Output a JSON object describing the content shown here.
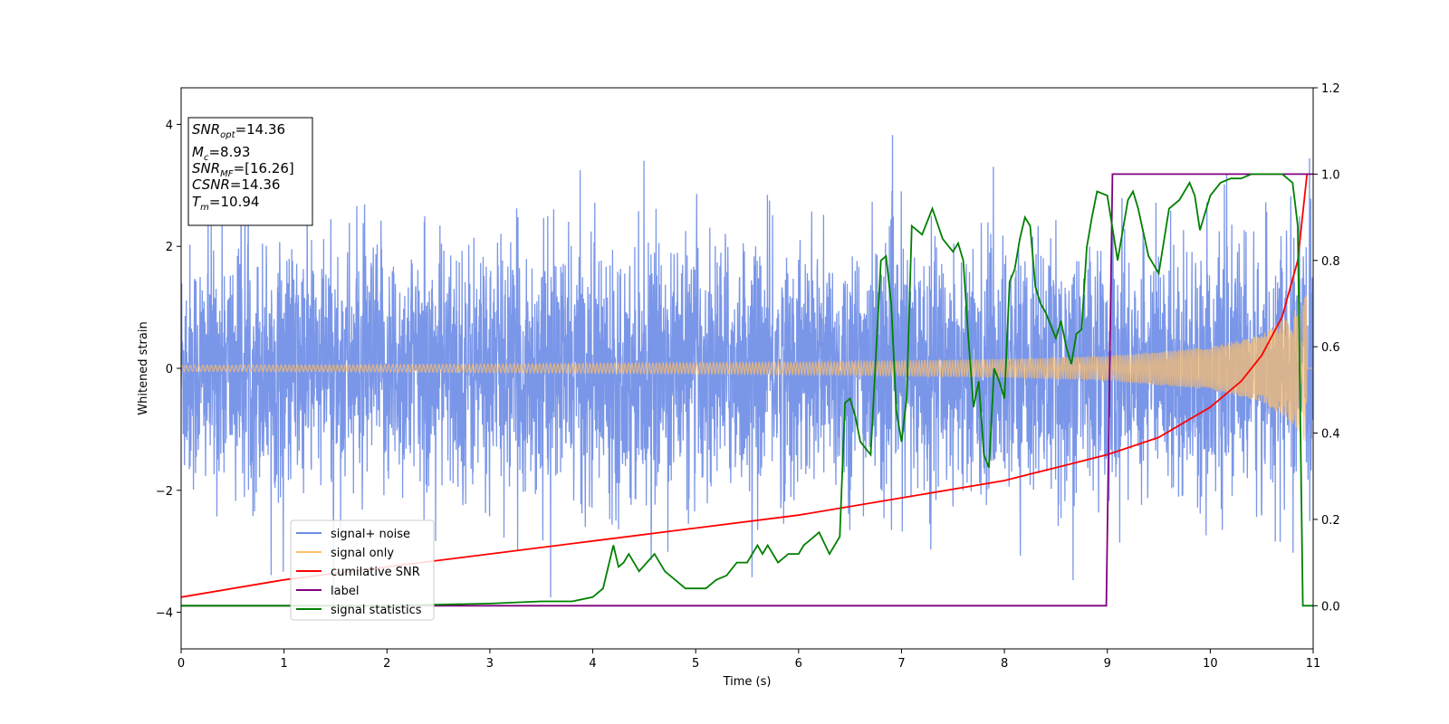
{
  "chart_data": {
    "type": "line",
    "xlabel": "Time (s)",
    "ylabel": "Whitened strain",
    "xlim": [
      0,
      11
    ],
    "ylim": [
      -4.6,
      4.6
    ],
    "y2lim": [
      -0.1,
      1.2
    ],
    "xticks": [
      "0",
      "1",
      "2",
      "3",
      "4",
      "5",
      "6",
      "7",
      "8",
      "9",
      "10",
      "11"
    ],
    "yticks": [
      "−4",
      "−2",
      "0",
      "2",
      "4"
    ],
    "y2ticks": [
      "0.0",
      "0.2",
      "0.4",
      "0.6",
      "0.8",
      "1.0",
      "1.2"
    ],
    "legend": {
      "placement": "lower-left",
      "entries": [
        "signal+ noise",
        "signal only",
        "cumilative SNR",
        "label",
        "signal statistics"
      ]
    },
    "info_box": {
      "lines": [
        {
          "sym": "SNR",
          "sub": "opt",
          "val": "=14.36"
        },
        {
          "sym": "M",
          "sub": "c",
          "val": "=8.93"
        },
        {
          "sym": "SNR",
          "sub": "MF",
          "val": "=[16.26]"
        },
        {
          "sym": "CSNR",
          "sub": "",
          "val": "=14.36"
        },
        {
          "sym": "T",
          "sub": "m",
          "val": "=10.94"
        }
      ]
    },
    "series": [
      {
        "name": "signal+ noise",
        "axis": "left",
        "color": "#6b8be6",
        "description_values": {
          "noise_std": 1.0,
          "sample_rate_display": 400
        }
      },
      {
        "name": "signal only",
        "axis": "left",
        "color": "#ffbf69",
        "envelope": {
          "t": [
            0,
            2,
            4,
            6,
            8,
            9,
            10,
            10.5,
            10.8,
            10.94
          ],
          "amp": [
            0.05,
            0.06,
            0.08,
            0.1,
            0.15,
            0.2,
            0.35,
            0.55,
            0.9,
            1.25
          ]
        }
      },
      {
        "name": "cumilative SNR",
        "axis": "right",
        "color": "#ff0000",
        "x": [
          0,
          1,
          2,
          3,
          4,
          5,
          6,
          7,
          8,
          8.5,
          9,
          9.5,
          10,
          10.3,
          10.5,
          10.7,
          10.85,
          10.94
        ],
        "y": [
          0.02,
          0.06,
          0.09,
          0.12,
          0.15,
          0.18,
          0.21,
          0.25,
          0.29,
          0.32,
          0.35,
          0.39,
          0.46,
          0.52,
          0.58,
          0.67,
          0.8,
          1.0
        ]
      },
      {
        "name": "label",
        "axis": "right",
        "color": "#800080",
        "x": [
          0,
          8.99,
          9.05,
          10.94,
          11.0
        ],
        "y": [
          0.0,
          0.0,
          1.0,
          1.0,
          1.0
        ]
      },
      {
        "name": "signal statistics",
        "axis": "right",
        "color": "#008000",
        "x": [
          0,
          1,
          2,
          3,
          3.5,
          3.8,
          4.0,
          4.1,
          4.2,
          4.25,
          4.3,
          4.35,
          4.45,
          4.6,
          4.7,
          4.8,
          4.9,
          5.0,
          5.1,
          5.2,
          5.3,
          5.4,
          5.5,
          5.6,
          5.65,
          5.7,
          5.8,
          5.9,
          6.0,
          6.05,
          6.1,
          6.2,
          6.3,
          6.4,
          6.45,
          6.5,
          6.55,
          6.6,
          6.7,
          6.8,
          6.85,
          6.9,
          6.95,
          7.0,
          7.05,
          7.1,
          7.2,
          7.3,
          7.4,
          7.5,
          7.55,
          7.6,
          7.65,
          7.7,
          7.75,
          7.8,
          7.85,
          7.9,
          7.95,
          8.0,
          8.05,
          8.1,
          8.15,
          8.2,
          8.25,
          8.3,
          8.35,
          8.4,
          8.45,
          8.5,
          8.55,
          8.6,
          8.65,
          8.7,
          8.75,
          8.8,
          8.85,
          8.9,
          9.0,
          9.1,
          9.2,
          9.25,
          9.3,
          9.4,
          9.5,
          9.6,
          9.7,
          9.8,
          9.85,
          9.9,
          10.0,
          10.1,
          10.2,
          10.3,
          10.4,
          10.5,
          10.6,
          10.7,
          10.8,
          10.85,
          10.9,
          10.94,
          11.0
        ],
        "y": [
          0.0,
          0.0,
          0.0,
          0.005,
          0.01,
          0.01,
          0.02,
          0.04,
          0.14,
          0.09,
          0.1,
          0.12,
          0.08,
          0.12,
          0.08,
          0.06,
          0.04,
          0.04,
          0.04,
          0.06,
          0.07,
          0.1,
          0.1,
          0.14,
          0.12,
          0.14,
          0.1,
          0.12,
          0.12,
          0.14,
          0.15,
          0.17,
          0.12,
          0.16,
          0.47,
          0.48,
          0.44,
          0.38,
          0.35,
          0.8,
          0.81,
          0.7,
          0.45,
          0.38,
          0.48,
          0.88,
          0.86,
          0.92,
          0.85,
          0.82,
          0.84,
          0.8,
          0.62,
          0.46,
          0.52,
          0.35,
          0.32,
          0.55,
          0.52,
          0.48,
          0.75,
          0.78,
          0.85,
          0.9,
          0.88,
          0.74,
          0.7,
          0.68,
          0.65,
          0.62,
          0.66,
          0.6,
          0.56,
          0.63,
          0.64,
          0.83,
          0.9,
          0.96,
          0.95,
          0.8,
          0.94,
          0.96,
          0.92,
          0.81,
          0.77,
          0.92,
          0.94,
          0.98,
          0.95,
          0.87,
          0.95,
          0.98,
          0.99,
          0.99,
          1.0,
          1.0,
          1.0,
          1.0,
          0.98,
          0.88,
          0.0,
          0.0,
          0.0
        ]
      }
    ]
  }
}
